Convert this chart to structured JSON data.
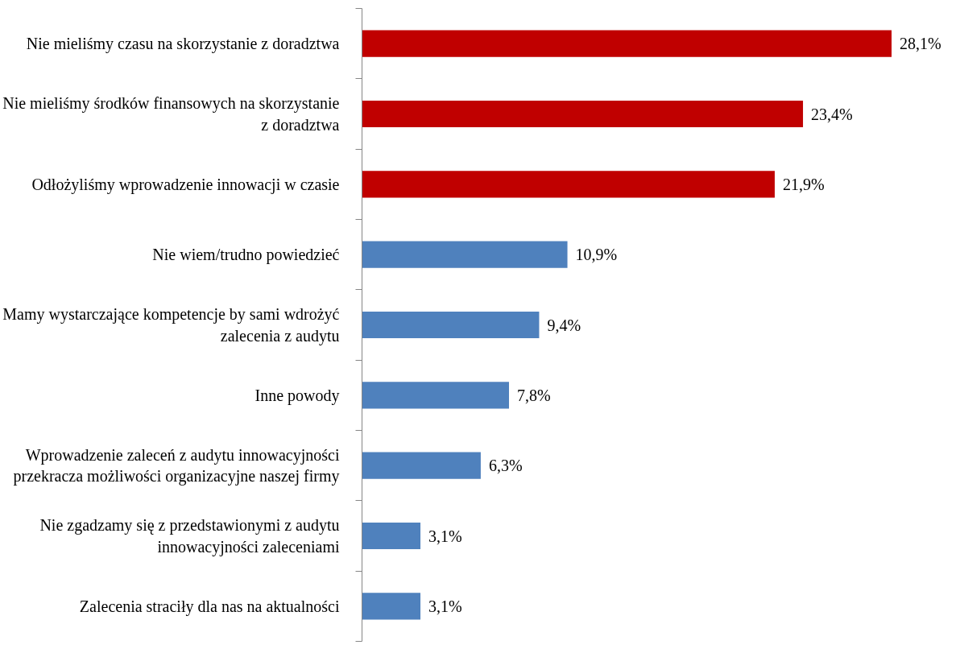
{
  "chart_data": {
    "type": "bar",
    "orientation": "horizontal",
    "categories": [
      "Nie mieliśmy czasu na skorzystanie z doradztwa",
      "Nie mieliśmy środków finansowych na skorzystanie z doradztwa",
      "Odłożyliśmy wprowadzenie innowacji w czasie",
      "Nie wiem/trudno powiedzieć",
      "Mamy wystarczające kompetencje by sami wdrożyć zalecenia z audytu",
      "Inne powody",
      "Wprowadzenie zaleceń z audytu innowacyjności przekracza możliwości organizacyjne naszej firmy",
      "Nie zgadzamy się z przedstawionymi z audytu innowacyjności zaleceniami",
      "Zalecenia straciły dla nas na aktualności"
    ],
    "values": [
      28.1,
      23.4,
      21.9,
      10.9,
      9.4,
      7.8,
      6.3,
      3.1,
      3.1
    ],
    "value_labels": [
      "28,1%",
      "23,4%",
      "21,9%",
      "10,9%",
      "9,4%",
      "7,8%",
      "6,3%",
      "3,1%",
      "3,1%"
    ],
    "colors": [
      "#c00000",
      "#c00000",
      "#c00000",
      "#4f81bd",
      "#4f81bd",
      "#4f81bd",
      "#4f81bd",
      "#4f81bd",
      "#4f81bd"
    ],
    "grid": false
  }
}
